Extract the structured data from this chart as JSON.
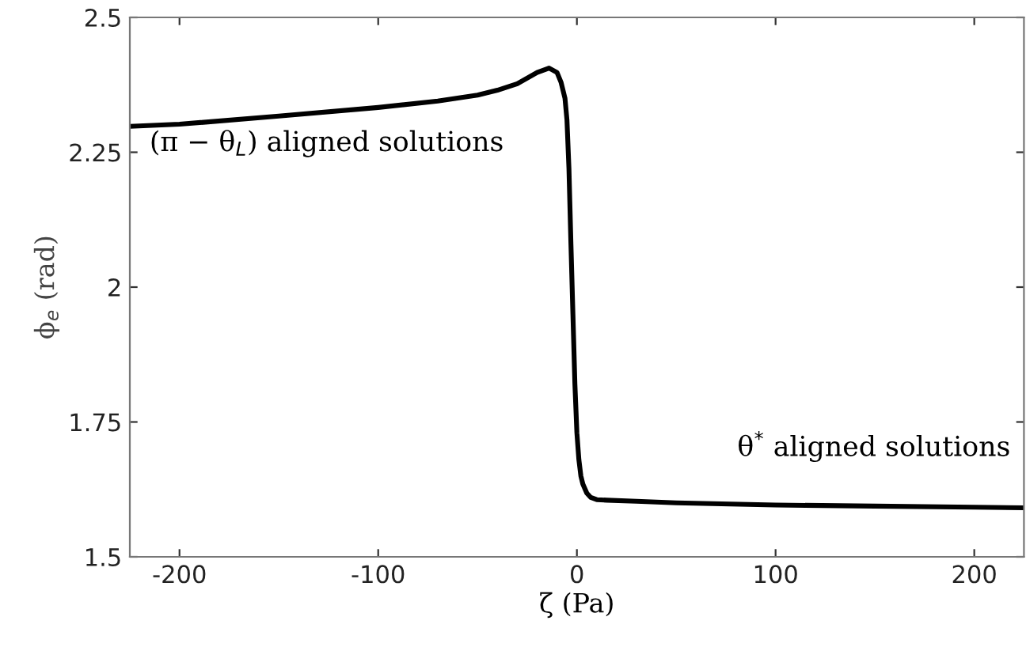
{
  "chart_data": {
    "type": "line",
    "xlabel": "ζ (Pa)",
    "ylabel": "ϕ$_{e}$ (rad)",
    "x": [
      -225,
      -200,
      -150,
      -100,
      -70,
      -50,
      -40,
      -30,
      -20,
      -14,
      -10,
      -8,
      -6,
      -5,
      -4,
      -3,
      -2,
      -1,
      0,
      1,
      2,
      3,
      5,
      7,
      10,
      15,
      30,
      50,
      100,
      150,
      200,
      225
    ],
    "series": [
      {
        "color": "#000000",
        "values": [
          2.298,
          2.302,
          2.317,
          2.333,
          2.345,
          2.356,
          2.365,
          2.377,
          2.398,
          2.406,
          2.398,
          2.38,
          2.35,
          2.31,
          2.22,
          2.08,
          1.95,
          1.82,
          1.73,
          1.68,
          1.65,
          1.635,
          1.618,
          1.61,
          1.606,
          1.605,
          1.603,
          1.6,
          1.596,
          1.594,
          1.592,
          1.591
        ]
      }
    ],
    "xlim": [
      -225,
      225
    ],
    "ylim": [
      1.5,
      2.5
    ],
    "xticks": [
      -200,
      -100,
      0,
      100,
      200
    ],
    "yticks": [
      1.5,
      2.25,
      2,
      1.75,
      2.5
    ],
    "annotations": [
      "(π − θ$_{L}$) aligned solutions",
      "θ$^{*}$ aligned solutions"
    ],
    "grid": false,
    "legend": false,
    "line_style": "solid",
    "marker": "none"
  }
}
